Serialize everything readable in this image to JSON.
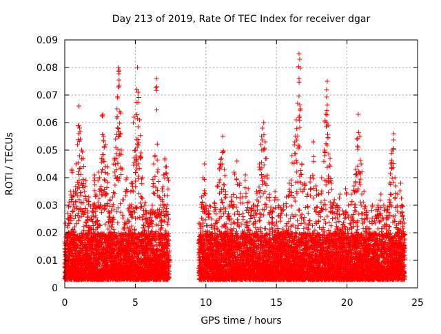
{
  "chart_data": {
    "type": "scatter",
    "title": "Day 213 of 2019, Rate Of TEC Index for receiver dgar",
    "xlabel": "GPS time / hours",
    "ylabel": "ROTI / TECUs",
    "xlim": [
      0,
      25
    ],
    "ylim": [
      0,
      0.09
    ],
    "x_ticks": [
      0,
      5,
      10,
      15,
      20,
      25
    ],
    "y_ticks": [
      0,
      0.01,
      0.02,
      0.03,
      0.04,
      0.05,
      0.06,
      0.07,
      0.08,
      0.09
    ],
    "x_tick_labels": [
      "0",
      "5",
      "10",
      "15",
      "20",
      "25"
    ],
    "y_tick_labels": [
      "0",
      "0.01",
      "0.02",
      "0.03",
      "0.04",
      "0.05",
      "0.06",
      "0.07",
      "0.08",
      "0.09"
    ],
    "grid": true,
    "marker": "+",
    "marker_color": "#ff0000",
    "data_gap_hours": [
      7.4,
      9.5
    ],
    "series": [
      {
        "name": "ROTI",
        "points": [
          [
            0.1,
            0.012
          ],
          [
            0.2,
            0.022
          ],
          [
            0.3,
            0.031
          ],
          [
            0.4,
            0.035
          ],
          [
            0.5,
            0.043
          ],
          [
            0.6,
            0.035
          ],
          [
            0.7,
            0.029
          ],
          [
            0.8,
            0.045
          ],
          [
            0.9,
            0.052
          ],
          [
            1.0,
            0.066
          ],
          [
            1.05,
            0.058
          ],
          [
            1.1,
            0.054
          ],
          [
            1.2,
            0.05
          ],
          [
            1.3,
            0.047
          ],
          [
            1.4,
            0.035
          ],
          [
            1.5,
            0.039
          ],
          [
            1.6,
            0.028
          ],
          [
            1.7,
            0.033
          ],
          [
            1.8,
            0.022
          ],
          [
            1.9,
            0.025
          ],
          [
            2.0,
            0.03
          ],
          [
            2.1,
            0.041
          ],
          [
            2.2,
            0.034
          ],
          [
            2.3,
            0.029
          ],
          [
            2.4,
            0.042
          ],
          [
            2.5,
            0.036
          ],
          [
            2.6,
            0.047
          ],
          [
            2.7,
            0.063
          ],
          [
            2.75,
            0.055
          ],
          [
            2.8,
            0.051
          ],
          [
            2.9,
            0.052
          ],
          [
            3.0,
            0.044
          ],
          [
            3.1,
            0.024
          ],
          [
            3.2,
            0.032
          ],
          [
            3.3,
            0.028
          ],
          [
            3.4,
            0.033
          ],
          [
            3.5,
            0.047
          ],
          [
            3.6,
            0.054
          ],
          [
            3.7,
            0.065
          ],
          [
            3.75,
            0.069
          ],
          [
            3.8,
            0.08
          ],
          [
            3.85,
            0.079
          ],
          [
            3.9,
            0.064
          ],
          [
            4.0,
            0.05
          ],
          [
            4.1,
            0.032
          ],
          [
            4.2,
            0.022
          ],
          [
            4.3,
            0.035
          ],
          [
            4.4,
            0.04
          ],
          [
            4.5,
            0.024
          ],
          [
            4.6,
            0.03
          ],
          [
            4.7,
            0.038
          ],
          [
            4.8,
            0.038
          ],
          [
            4.9,
            0.062
          ],
          [
            5.0,
            0.05
          ],
          [
            5.1,
            0.072
          ],
          [
            5.15,
            0.08
          ],
          [
            5.2,
            0.071
          ],
          [
            5.3,
            0.061
          ],
          [
            5.4,
            0.049
          ],
          [
            5.5,
            0.04
          ],
          [
            5.6,
            0.023
          ],
          [
            5.7,
            0.031
          ],
          [
            5.8,
            0.027
          ],
          [
            5.9,
            0.025
          ],
          [
            6.0,
            0.025
          ],
          [
            6.1,
            0.028
          ],
          [
            6.2,
            0.03
          ],
          [
            6.3,
            0.045
          ],
          [
            6.4,
            0.048
          ],
          [
            6.5,
            0.076
          ],
          [
            6.6,
            0.043
          ],
          [
            6.7,
            0.033
          ],
          [
            6.8,
            0.03
          ],
          [
            6.9,
            0.036
          ],
          [
            7.0,
            0.041
          ],
          [
            7.1,
            0.047
          ],
          [
            7.2,
            0.044
          ],
          [
            7.3,
            0.04
          ],
          [
            9.6,
            0.02
          ],
          [
            9.7,
            0.033
          ],
          [
            9.8,
            0.04
          ],
          [
            9.9,
            0.045
          ],
          [
            10.0,
            0.03
          ],
          [
            10.2,
            0.028
          ],
          [
            10.4,
            0.025
          ],
          [
            10.6,
            0.031
          ],
          [
            10.8,
            0.037
          ],
          [
            11.0,
            0.045
          ],
          [
            11.1,
            0.047
          ],
          [
            11.2,
            0.055
          ],
          [
            11.3,
            0.043
          ],
          [
            11.4,
            0.035
          ],
          [
            11.6,
            0.027
          ],
          [
            11.8,
            0.033
          ],
          [
            12.0,
            0.042
          ],
          [
            12.2,
            0.046
          ],
          [
            12.4,
            0.038
          ],
          [
            12.6,
            0.033
          ],
          [
            12.8,
            0.041
          ],
          [
            13.0,
            0.036
          ],
          [
            13.2,
            0.029
          ],
          [
            13.4,
            0.03
          ],
          [
            13.6,
            0.035
          ],
          [
            13.8,
            0.045
          ],
          [
            13.9,
            0.052
          ],
          [
            14.0,
            0.058
          ],
          [
            14.1,
            0.06
          ],
          [
            14.2,
            0.053
          ],
          [
            14.3,
            0.047
          ],
          [
            14.5,
            0.034
          ],
          [
            14.7,
            0.028
          ],
          [
            14.9,
            0.035
          ],
          [
            15.1,
            0.032
          ],
          [
            15.3,
            0.029
          ],
          [
            15.5,
            0.03
          ],
          [
            15.7,
            0.033
          ],
          [
            15.9,
            0.038
          ],
          [
            16.1,
            0.048
          ],
          [
            16.3,
            0.053
          ],
          [
            16.4,
            0.061
          ],
          [
            16.5,
            0.067
          ],
          [
            16.6,
            0.085
          ],
          [
            16.65,
            0.083
          ],
          [
            16.7,
            0.065
          ],
          [
            16.8,
            0.045
          ],
          [
            17.0,
            0.038
          ],
          [
            17.2,
            0.034
          ],
          [
            17.4,
            0.04
          ],
          [
            17.6,
            0.053
          ],
          [
            17.8,
            0.037
          ],
          [
            18.0,
            0.034
          ],
          [
            18.2,
            0.04
          ],
          [
            18.4,
            0.05
          ],
          [
            18.5,
            0.063
          ],
          [
            18.55,
            0.072
          ],
          [
            18.6,
            0.075
          ],
          [
            18.7,
            0.059
          ],
          [
            18.8,
            0.047
          ],
          [
            18.9,
            0.038
          ],
          [
            19.1,
            0.032
          ],
          [
            19.3,
            0.03
          ],
          [
            19.5,
            0.034
          ],
          [
            19.7,
            0.028
          ],
          [
            19.9,
            0.036
          ],
          [
            20.1,
            0.03
          ],
          [
            20.3,
            0.034
          ],
          [
            20.5,
            0.037
          ],
          [
            20.6,
            0.043
          ],
          [
            20.7,
            0.054
          ],
          [
            20.8,
            0.063
          ],
          [
            20.9,
            0.055
          ],
          [
            21.0,
            0.045
          ],
          [
            21.2,
            0.035
          ],
          [
            21.4,
            0.028
          ],
          [
            21.6,
            0.024
          ],
          [
            21.8,
            0.03
          ],
          [
            22.0,
            0.026
          ],
          [
            22.2,
            0.03
          ],
          [
            22.4,
            0.034
          ],
          [
            22.6,
            0.03
          ],
          [
            22.8,
            0.028
          ],
          [
            23.0,
            0.032
          ],
          [
            23.1,
            0.045
          ],
          [
            23.2,
            0.05
          ],
          [
            23.3,
            0.056
          ],
          [
            23.4,
            0.04
          ],
          [
            23.6,
            0.034
          ],
          [
            23.8,
            0.038
          ],
          [
            23.9,
            0.03
          ],
          [
            24.0,
            0.025
          ]
        ],
        "baseline_band": [
          0.003,
          0.02
        ],
        "baseline_segments": [
          [
            0.0,
            7.4
          ],
          [
            9.5,
            24.1
          ]
        ]
      }
    ]
  }
}
